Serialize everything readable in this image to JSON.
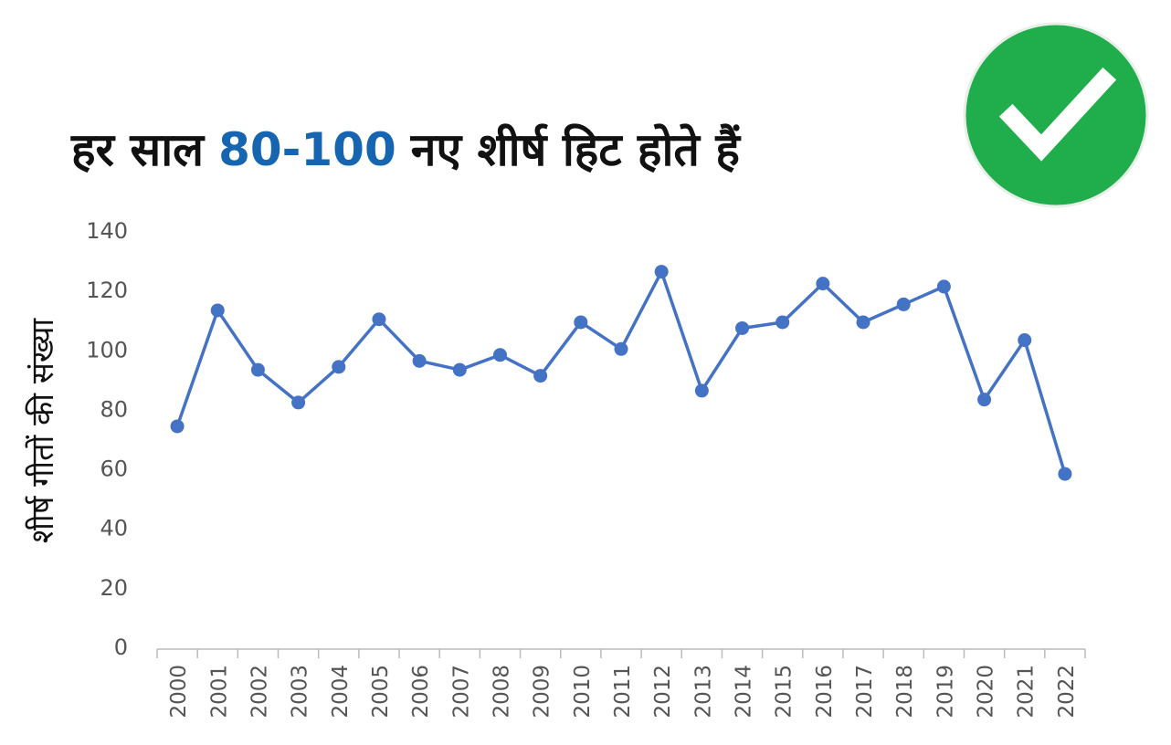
{
  "chart_data": {
    "type": "line",
    "title": [
      {
        "text": "हर साल"
      },
      {
        "text": "80-100",
        "color": "#1565b0"
      },
      {
        "text": "नए शीर्ष हिट होते हैं"
      }
    ],
    "y_label": "शीर्ष गीतों की संख्या",
    "categories": [
      "2000",
      "2001",
      "2002",
      "2003",
      "2004",
      "2005",
      "2006",
      "2007",
      "2008",
      "2009",
      "2010",
      "2011",
      "2012",
      "2013",
      "2014",
      "2015",
      "2016",
      "2017",
      "2018",
      "2019",
      "2020",
      "2021",
      "2022"
    ],
    "series": [
      {
        "color": "#4472c4",
        "values": [
          74,
          113,
          93,
          82,
          94,
          110,
          96,
          93,
          98,
          91,
          109,
          100,
          126,
          86,
          107,
          109,
          122,
          109,
          115,
          121,
          83,
          103,
          58
        ]
      }
    ],
    "ylim": [
      0,
      140
    ],
    "yticks": [
      0,
      20,
      40,
      60,
      80,
      100,
      120,
      140
    ],
    "grid": false
  }
}
